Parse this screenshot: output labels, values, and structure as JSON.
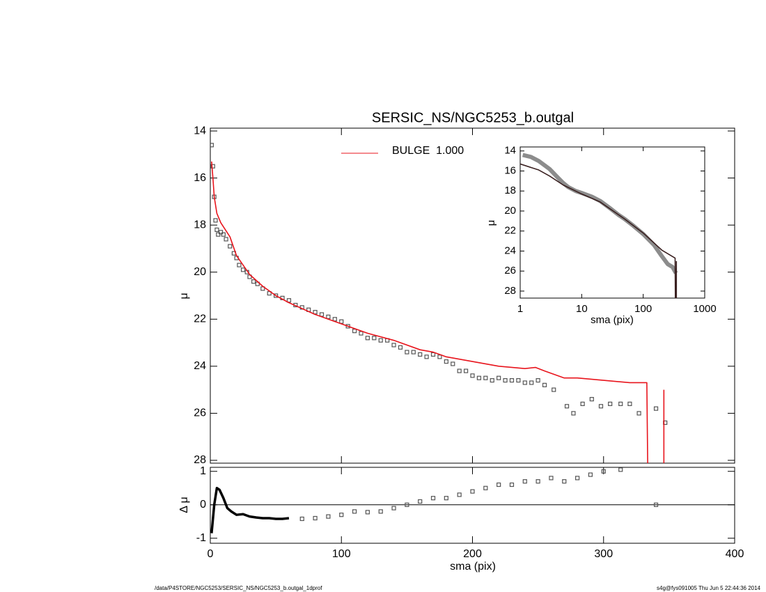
{
  "chart_data": [
    {
      "type": "line",
      "title": "SERSIC_NS/NGC5253_b.outgal",
      "y_label": "μ",
      "xlim": [
        0,
        400
      ],
      "ylim": [
        28.12,
        13.88
      ],
      "yticks": [
        14,
        16,
        18,
        20,
        22,
        24,
        26,
        28
      ],
      "legend": "upper-center",
      "series": [
        {
          "mode": "markers",
          "color": "#555555",
          "x": [
            1,
            2,
            3,
            4,
            5,
            6,
            8,
            10,
            12,
            15,
            18,
            20,
            22,
            25,
            28,
            30,
            33,
            36,
            40,
            45,
            50,
            55,
            60,
            65,
            70,
            75,
            80,
            85,
            90,
            95,
            100,
            105,
            110,
            115,
            120,
            125,
            130,
            135,
            140,
            145,
            150,
            155,
            160,
            165,
            170,
            175,
            180,
            185,
            190,
            195,
            200,
            205,
            210,
            215,
            220,
            225,
            230,
            235,
            240,
            245,
            250,
            255,
            262,
            272,
            277,
            284,
            291,
            298,
            305,
            313,
            320,
            327,
            340,
            347
          ],
          "values": [
            14.6,
            15.5,
            16.8,
            17.8,
            18.2,
            18.4,
            18.3,
            18.4,
            18.6,
            18.9,
            19.2,
            19.4,
            19.7,
            19.9,
            20.0,
            20.2,
            20.4,
            20.5,
            20.7,
            20.9,
            21.0,
            21.1,
            21.2,
            21.4,
            21.5,
            21.6,
            21.7,
            21.8,
            21.9,
            22.0,
            22.1,
            22.3,
            22.5,
            22.6,
            22.8,
            22.8,
            22.9,
            22.9,
            23.1,
            23.2,
            23.4,
            23.4,
            23.5,
            23.6,
            23.5,
            23.6,
            23.8,
            23.9,
            24.2,
            24.2,
            24.4,
            24.5,
            24.5,
            24.6,
            24.5,
            24.6,
            24.6,
            24.6,
            24.7,
            24.7,
            24.6,
            24.8,
            25.0,
            25.7,
            26.0,
            25.6,
            25.4,
            25.7,
            25.6,
            25.6,
            25.6,
            26.0,
            25.8,
            26.4
          ]
        },
        {
          "mode": "lines",
          "name": "BULGE  1.000",
          "color": "#e8141c",
          "x": [
            1,
            2,
            3,
            5,
            8,
            15,
            20,
            25,
            30,
            40,
            50,
            60,
            80,
            100,
            120,
            140,
            160,
            170,
            180,
            200,
            220,
            240,
            248,
            255,
            270,
            280,
            300,
            320,
            333,
            334,
            null,
            346,
            346
          ],
          "values": [
            15.3,
            16.0,
            16.8,
            17.5,
            17.9,
            18.5,
            19.3,
            19.7,
            20.1,
            20.6,
            21.0,
            21.3,
            21.8,
            22.2,
            22.6,
            22.9,
            23.3,
            23.4,
            23.6,
            23.8,
            24.0,
            24.1,
            24.05,
            24.2,
            24.5,
            24.5,
            24.6,
            24.7,
            24.7,
            30,
            null,
            30,
            25.0
          ]
        }
      ]
    },
    {
      "type": "line",
      "x_label": "sma (pix)",
      "y_label": "Δ μ",
      "xlim": [
        0,
        400
      ],
      "ylim": [
        -1.15,
        1.12
      ],
      "xticks": [
        0,
        100,
        200,
        300,
        400
      ],
      "yticks": [
        -1,
        0,
        1
      ],
      "hline": 0,
      "series": [
        {
          "mode": "lines",
          "color": "#000000",
          "x": [
            1,
            3,
            5,
            7,
            10,
            13,
            16,
            20,
            25,
            30,
            35,
            40,
            45,
            50,
            55,
            60
          ],
          "values": [
            -0.85,
            0.0,
            0.5,
            0.45,
            0.2,
            -0.1,
            -0.2,
            -0.3,
            -0.28,
            -0.35,
            -0.38,
            -0.4,
            -0.4,
            -0.42,
            -0.42,
            -0.4
          ]
        },
        {
          "mode": "markers",
          "color": "#555555",
          "x": [
            70,
            80,
            90,
            100,
            110,
            120,
            130,
            140,
            150,
            160,
            170,
            180,
            190,
            200,
            210,
            220,
            230,
            240,
            250,
            260,
            270,
            280,
            290,
            300,
            313,
            340
          ],
          "values": [
            -0.42,
            -0.4,
            -0.35,
            -0.3,
            -0.2,
            -0.22,
            -0.2,
            -0.1,
            0.0,
            0.1,
            0.2,
            0.2,
            0.3,
            0.4,
            0.5,
            0.6,
            0.6,
            0.7,
            0.7,
            0.8,
            0.7,
            0.8,
            0.9,
            1.0,
            1.05,
            0.0
          ]
        }
      ]
    },
    {
      "type": "line",
      "x_label": "sma (pix)",
      "y_label": "μ",
      "xlog": true,
      "xlim": [
        1,
        1000
      ],
      "ylim": [
        28.7,
        13.6
      ],
      "xticks": [
        1,
        10,
        100,
        1000
      ],
      "yticks": [
        14,
        16,
        18,
        20,
        22,
        24,
        26,
        28
      ],
      "series": [
        {
          "mode": "lines",
          "color": "#8c8c8c",
          "x": [
            1.1,
            1.5,
            2,
            3,
            4,
            5,
            6,
            8,
            10,
            15,
            20,
            30,
            40,
            50,
            70,
            100,
            150,
            200,
            250,
            300,
            340
          ],
          "values": [
            14.4,
            14.6,
            15.0,
            15.8,
            16.6,
            17.2,
            17.6,
            18.0,
            18.2,
            18.6,
            19.0,
            19.8,
            20.4,
            20.8,
            21.5,
            22.3,
            23.4,
            24.5,
            25.3,
            25.6,
            26.2
          ]
        },
        {
          "mode": "lines",
          "color": "#3a2020",
          "x": [
            1,
            2,
            3,
            5,
            10,
            20,
            50,
            100,
            200,
            330,
            334,
            null,
            346,
            346
          ],
          "values": [
            15.3,
            15.9,
            16.5,
            17.4,
            18.3,
            19.1,
            20.8,
            22.2,
            23.9,
            24.7,
            30,
            null,
            30,
            25.0
          ]
        }
      ]
    }
  ],
  "footer": {
    "left": "/data/P4STORE/NGC5253/SERSIC_NS/NGC5253_b.outgal_1dprof",
    "right": "s4g@fys091005  Thu Jun  5 22:44:36 2014"
  }
}
